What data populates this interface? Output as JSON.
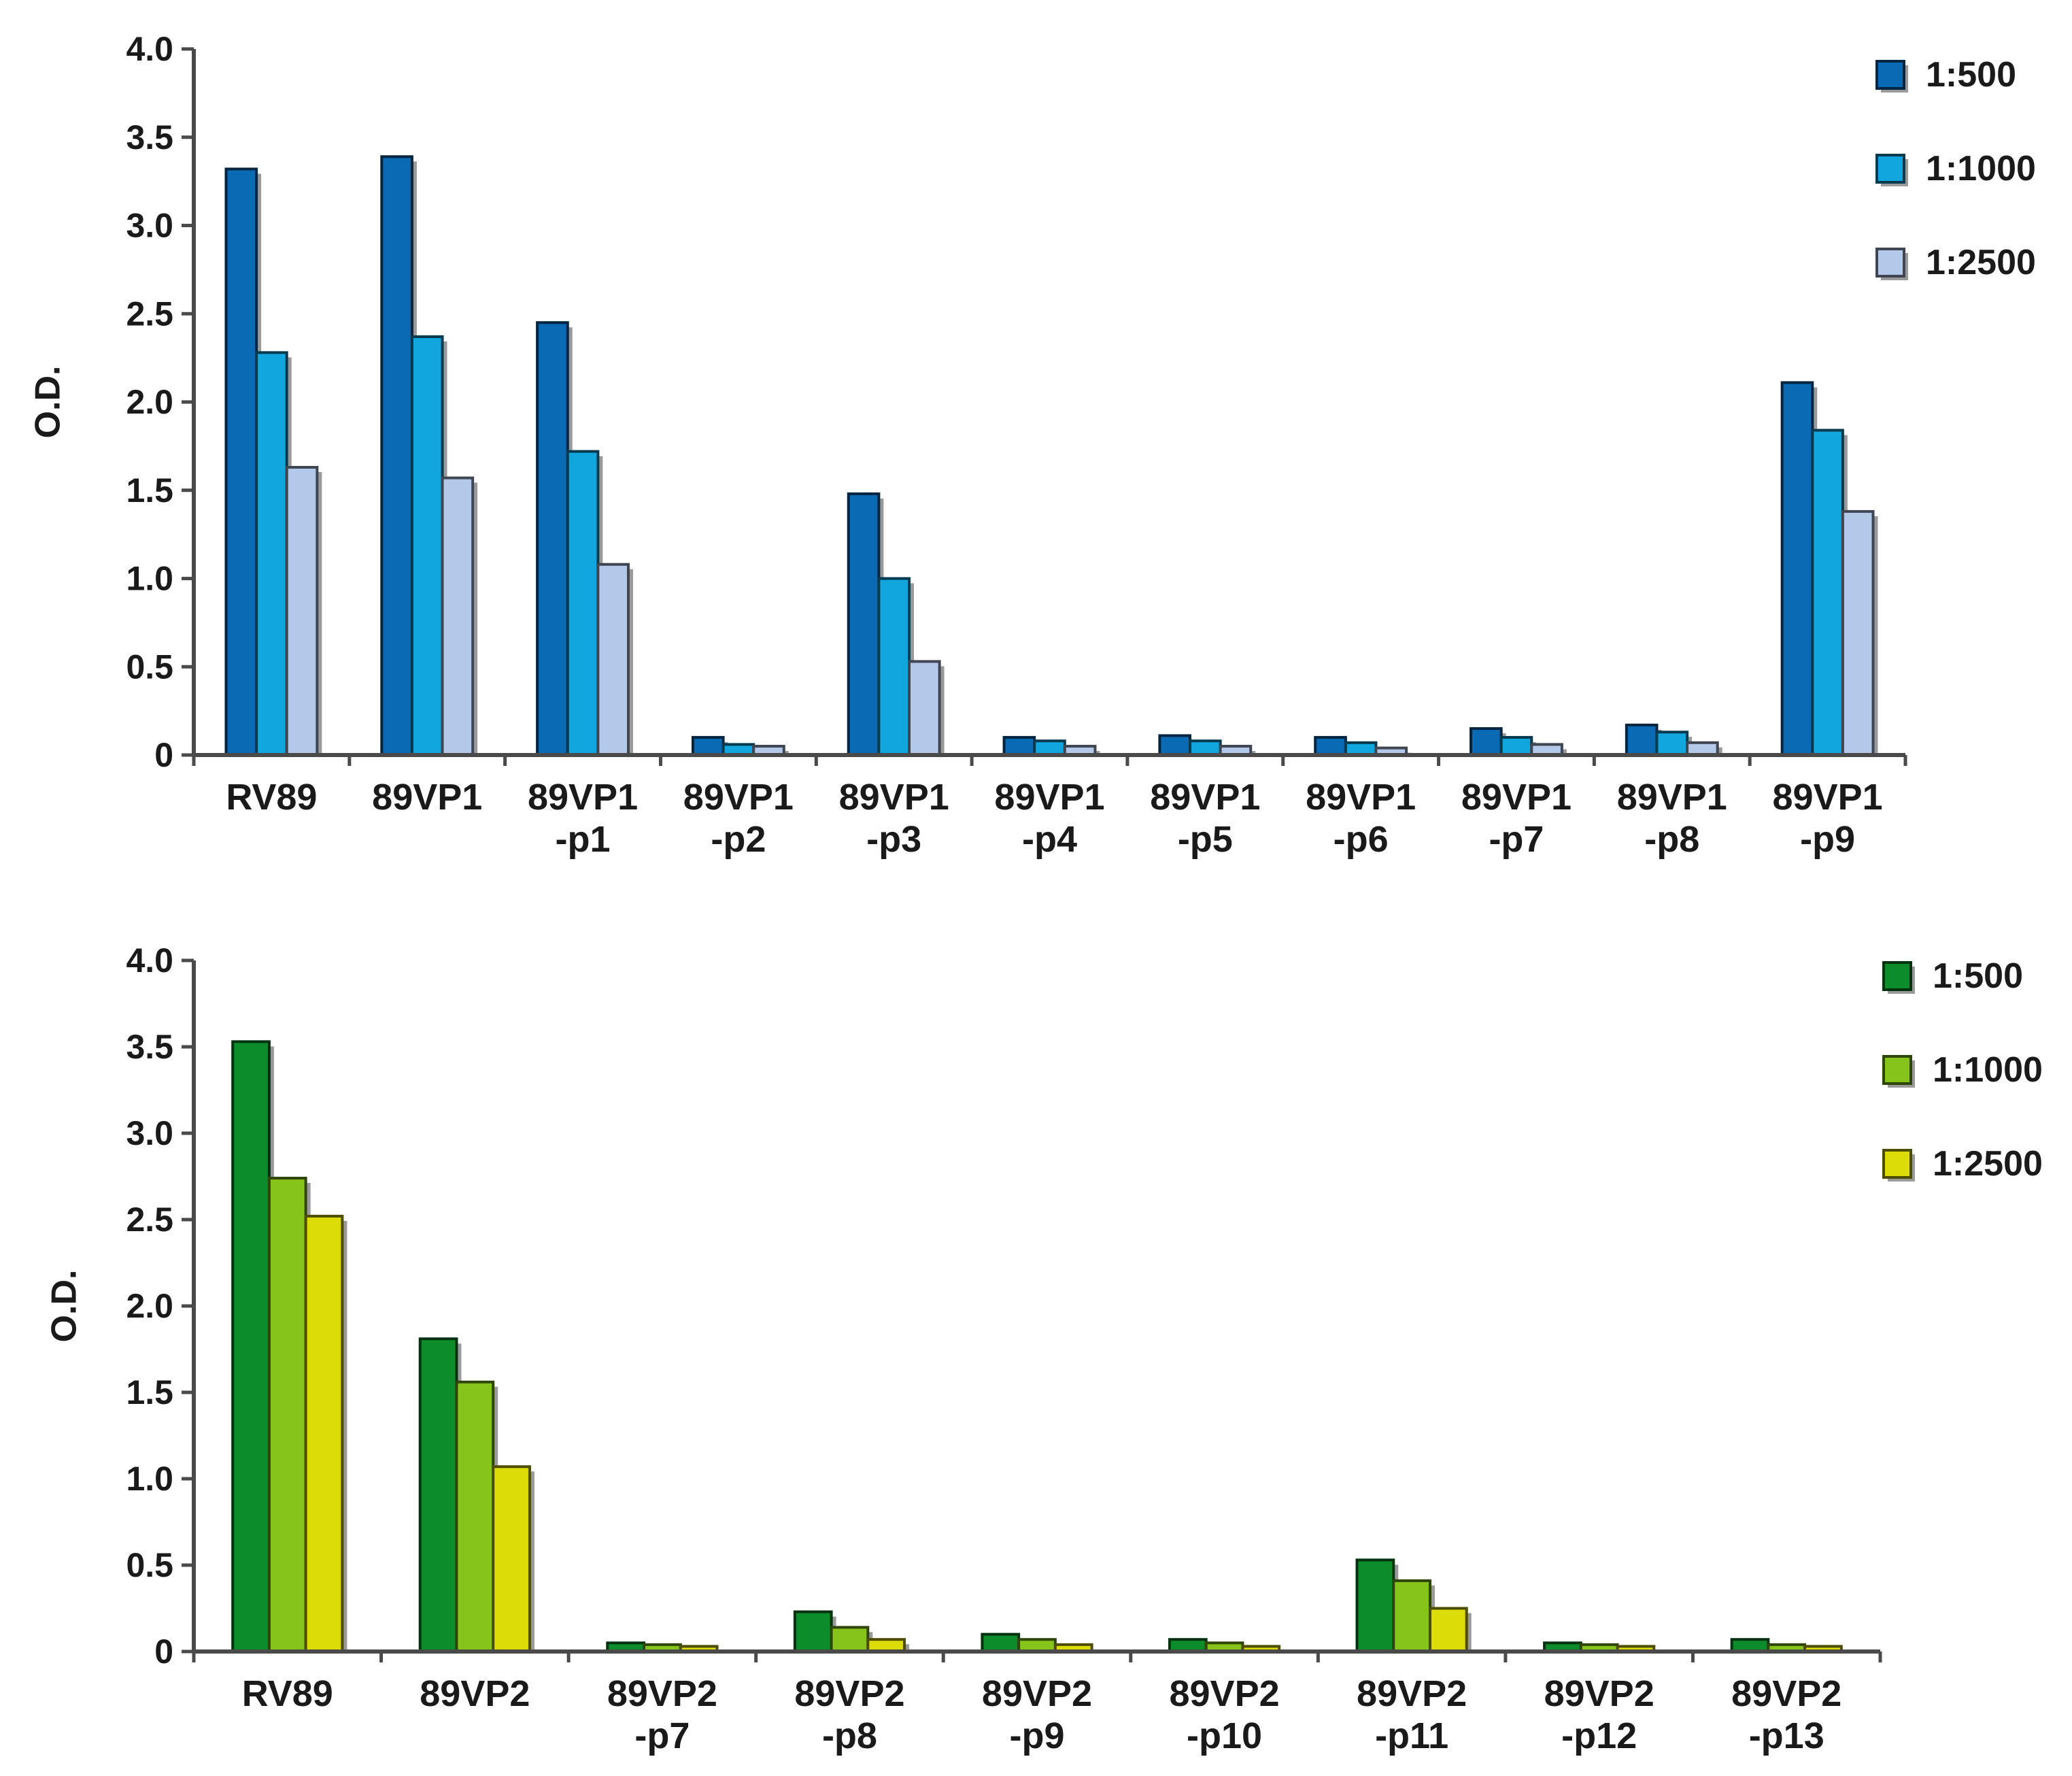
{
  "chart_data": [
    {
      "type": "bar",
      "title": "",
      "xlabel": "",
      "ylabel": "O.D.",
      "ylim": [
        0,
        4.0
      ],
      "yticks": [
        "0",
        "0.5",
        "1.0",
        "1.5",
        "2.0",
        "2.5",
        "3.0",
        "3.5",
        "4.0"
      ],
      "ytick_values": [
        0,
        0.5,
        1.0,
        1.5,
        2.0,
        2.5,
        3.0,
        3.5,
        4.0
      ],
      "categories": [
        [
          "RV89"
        ],
        [
          "89VP1"
        ],
        [
          "89VP1",
          "-p1"
        ],
        [
          "89VP1",
          "-p2"
        ],
        [
          "89VP1",
          "-p3"
        ],
        [
          "89VP1",
          "-p4"
        ],
        [
          "89VP1",
          "-p5"
        ],
        [
          "89VP1",
          "-p6"
        ],
        [
          "89VP1",
          "-p7"
        ],
        [
          "89VP1",
          "-p8"
        ],
        [
          "89VP1",
          "-p9"
        ]
      ],
      "legend_position": "top-right",
      "series": [
        {
          "name": "1:500",
          "color": "#0a6ab4",
          "values": [
            3.32,
            3.39,
            2.45,
            0.1,
            1.48,
            0.1,
            0.11,
            0.1,
            0.15,
            0.17,
            2.11
          ]
        },
        {
          "name": "1:1000",
          "color": "#12a6de",
          "values": [
            2.28,
            2.37,
            1.72,
            0.06,
            1.0,
            0.08,
            0.08,
            0.07,
            0.1,
            0.13,
            1.84
          ]
        },
        {
          "name": "1:2500",
          "color": "#b4c8ea",
          "values": [
            1.63,
            1.57,
            1.08,
            0.05,
            0.53,
            0.05,
            0.05,
            0.04,
            0.06,
            0.07,
            1.38
          ]
        }
      ]
    },
    {
      "type": "bar",
      "title": "",
      "xlabel": "",
      "ylabel": "O.D.",
      "ylim": [
        0,
        4.0
      ],
      "yticks": [
        "0",
        "0.5",
        "1.0",
        "1.5",
        "2.0",
        "2.5",
        "3.0",
        "3.5",
        "4.0"
      ],
      "ytick_values": [
        0,
        0.5,
        1.0,
        1.5,
        2.0,
        2.5,
        3.0,
        3.5,
        4.0
      ],
      "categories": [
        [
          "RV89"
        ],
        [
          "89VP2"
        ],
        [
          "89VP2",
          "-p7"
        ],
        [
          "89VP2",
          "-p8"
        ],
        [
          "89VP2",
          "-p9"
        ],
        [
          "89VP2",
          "-p10"
        ],
        [
          "89VP2",
          "-p11"
        ],
        [
          "89VP2",
          "-p12"
        ],
        [
          "89VP2",
          "-p13"
        ]
      ],
      "legend_position": "top-right",
      "series": [
        {
          "name": "1:500",
          "color": "#0c8c2a",
          "values": [
            3.53,
            1.81,
            0.05,
            0.23,
            0.1,
            0.07,
            0.53,
            0.05,
            0.07
          ]
        },
        {
          "name": "1:1000",
          "color": "#86c41c",
          "values": [
            2.74,
            1.56,
            0.04,
            0.14,
            0.07,
            0.05,
            0.41,
            0.04,
            0.04
          ]
        },
        {
          "name": "1:2500",
          "color": "#dcdc08",
          "values": [
            2.52,
            1.07,
            0.03,
            0.07,
            0.04,
            0.03,
            0.25,
            0.03,
            0.03
          ]
        }
      ]
    }
  ]
}
